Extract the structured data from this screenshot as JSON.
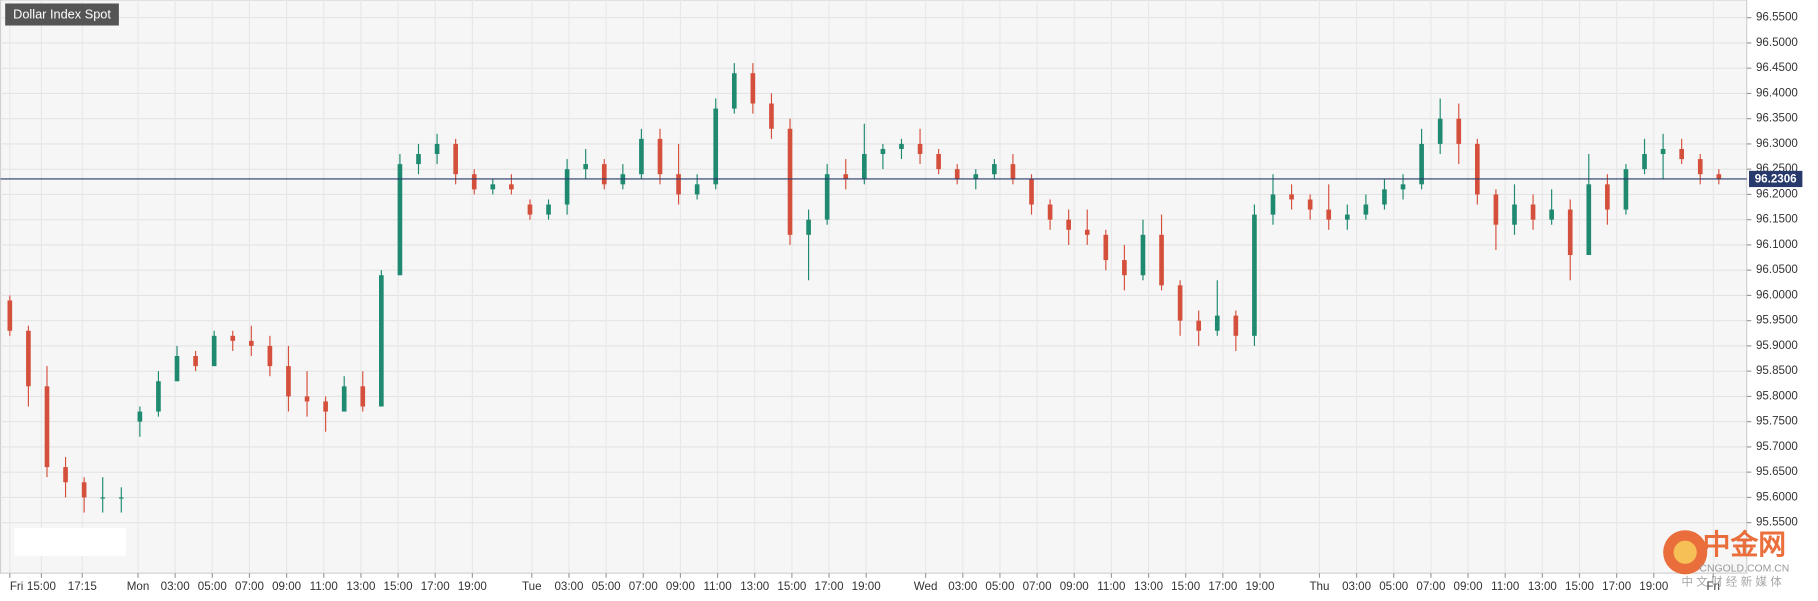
{
  "chart_data": {
    "type": "candlestick",
    "title": "Dollar Index Spot",
    "up_color": "#1f8a70",
    "down_color": "#d5503c",
    "grid": true,
    "last_price": 96.2306,
    "last_price_color": "#283a6b",
    "x": [
      0,
      1,
      2,
      3,
      4,
      5,
      6,
      7,
      8,
      9,
      10,
      11,
      12,
      13,
      14,
      15,
      16,
      17,
      18,
      19,
      20,
      21,
      22,
      23,
      24,
      25,
      26,
      27,
      28,
      29,
      30,
      31,
      32,
      33,
      34,
      35,
      36,
      37,
      38,
      39,
      40,
      41,
      42,
      43,
      44,
      45,
      46,
      47,
      48,
      49,
      50,
      51,
      52,
      53,
      54,
      55,
      56,
      57,
      58,
      59,
      60,
      61,
      62,
      63,
      64,
      65,
      66,
      67,
      68,
      69,
      70,
      71,
      72,
      73,
      74,
      75,
      76,
      77,
      78,
      79,
      80,
      81,
      82,
      83,
      84,
      85,
      86,
      87,
      88,
      89,
      90,
      91,
      92
    ],
    "open": [
      95.99,
      95.93,
      95.82,
      95.66,
      95.63,
      95.6,
      95.6,
      95.75,
      95.77,
      95.83,
      95.88,
      95.86,
      95.92,
      95.91,
      95.9,
      95.86,
      95.8,
      95.79,
      95.77,
      95.82,
      95.78,
      96.04,
      96.26,
      96.28,
      96.3,
      96.24,
      96.21,
      96.22,
      96.18,
      96.16,
      96.18,
      96.25,
      96.26,
      96.22,
      96.24,
      96.31,
      96.24,
      96.2,
      96.22,
      96.37,
      96.44,
      96.38,
      96.33,
      96.12,
      96.15,
      96.24,
      96.23,
      96.28,
      96.29,
      96.3,
      96.28,
      96.25,
      96.23,
      96.24,
      96.26,
      96.23,
      96.18,
      96.15,
      96.13,
      96.12,
      96.07,
      96.04,
      96.12,
      96.02,
      95.95,
      95.93,
      95.96,
      95.92,
      96.16,
      96.2,
      96.19,
      96.17,
      96.15,
      96.16,
      96.18,
      96.21,
      96.22,
      96.3,
      96.35,
      96.3,
      96.2,
      96.14,
      96.18,
      96.15,
      96.17,
      96.08,
      96.22,
      96.17,
      96.25,
      96.28,
      96.29,
      96.27,
      96.24
    ],
    "high": [
      96.0,
      95.94,
      95.86,
      95.68,
      95.64,
      95.64,
      95.62,
      95.78,
      95.85,
      95.9,
      95.89,
      95.93,
      95.93,
      95.94,
      95.92,
      95.9,
      95.85,
      95.8,
      95.84,
      95.85,
      96.05,
      96.28,
      96.3,
      96.32,
      96.31,
      96.25,
      96.23,
      96.24,
      96.19,
      96.19,
      96.27,
      96.29,
      96.27,
      96.26,
      96.33,
      96.33,
      96.3,
      96.24,
      96.39,
      96.46,
      96.46,
      96.4,
      96.35,
      96.17,
      96.26,
      96.27,
      96.34,
      96.3,
      96.31,
      96.33,
      96.29,
      96.26,
      96.25,
      96.27,
      96.28,
      96.24,
      96.19,
      96.17,
      96.17,
      96.13,
      96.1,
      96.15,
      96.16,
      96.03,
      95.97,
      96.03,
      95.97,
      96.18,
      96.24,
      96.22,
      96.2,
      96.22,
      96.18,
      96.2,
      96.23,
      96.24,
      96.33,
      96.39,
      96.38,
      96.31,
      96.21,
      96.22,
      96.2,
      96.21,
      96.19,
      96.28,
      96.24,
      96.26,
      96.31,
      96.32,
      96.31,
      96.28,
      96.25
    ],
    "low": [
      95.92,
      95.78,
      95.64,
      95.6,
      95.57,
      95.57,
      95.57,
      95.72,
      95.76,
      95.83,
      95.85,
      95.86,
      95.89,
      95.88,
      95.84,
      95.77,
      95.76,
      95.73,
      95.77,
      95.77,
      95.78,
      96.04,
      96.24,
      96.26,
      96.22,
      96.2,
      96.2,
      96.2,
      96.15,
      96.15,
      96.16,
      96.23,
      96.21,
      96.21,
      96.23,
      96.22,
      96.18,
      96.19,
      96.21,
      96.36,
      96.36,
      96.31,
      96.1,
      96.03,
      96.14,
      96.21,
      96.22,
      96.25,
      96.27,
      96.26,
      96.24,
      96.22,
      96.21,
      96.23,
      96.22,
      96.16,
      96.13,
      96.1,
      96.1,
      96.05,
      96.01,
      96.03,
      96.01,
      95.92,
      95.9,
      95.92,
      95.89,
      95.9,
      96.14,
      96.17,
      96.15,
      96.13,
      96.13,
      96.15,
      96.17,
      96.19,
      96.21,
      96.28,
      96.26,
      96.18,
      96.09,
      96.12,
      96.13,
      96.14,
      96.03,
      96.08,
      96.14,
      96.16,
      96.24,
      96.23,
      96.26,
      96.22,
      96.22
    ],
    "close": [
      95.93,
      95.82,
      95.66,
      95.63,
      95.6,
      95.6,
      95.6,
      95.77,
      95.83,
      95.88,
      95.86,
      95.92,
      95.91,
      95.9,
      95.86,
      95.8,
      95.79,
      95.77,
      95.82,
      95.78,
      96.04,
      96.26,
      96.28,
      96.3,
      96.24,
      96.21,
      96.22,
      96.21,
      96.16,
      96.18,
      96.25,
      96.26,
      96.22,
      96.24,
      96.31,
      96.24,
      96.2,
      96.22,
      96.37,
      96.44,
      96.38,
      96.33,
      96.12,
      96.15,
      96.24,
      96.23,
      96.28,
      96.29,
      96.3,
      96.28,
      96.25,
      96.23,
      96.24,
      96.26,
      96.23,
      96.18,
      96.15,
      96.13,
      96.12,
      96.07,
      96.04,
      96.12,
      96.02,
      95.95,
      95.93,
      95.96,
      95.92,
      96.16,
      96.2,
      96.19,
      96.17,
      96.15,
      96.16,
      96.18,
      96.21,
      96.22,
      96.3,
      96.35,
      96.3,
      96.2,
      96.14,
      96.18,
      96.15,
      96.17,
      96.08,
      96.22,
      96.17,
      96.25,
      96.28,
      96.29,
      96.27,
      96.24,
      96.23
    ],
    "xlim": [
      -0.5,
      93.5
    ],
    "xticks": [
      {
        "value": 0,
        "label": "Fri"
      },
      {
        "value": 1.7,
        "label": "15:00"
      },
      {
        "value": 3.9,
        "label": "17:15"
      },
      {
        "value": 6.9,
        "label": "Mon"
      },
      {
        "value": 8.9,
        "label": "03:00"
      },
      {
        "value": 10.9,
        "label": "05:00"
      },
      {
        "value": 12.9,
        "label": "07:00"
      },
      {
        "value": 14.9,
        "label": "09:00"
      },
      {
        "value": 16.9,
        "label": "11:00"
      },
      {
        "value": 18.9,
        "label": "13:00"
      },
      {
        "value": 20.9,
        "label": "15:00"
      },
      {
        "value": 22.9,
        "label": "17:00"
      },
      {
        "value": 24.9,
        "label": "19:00"
      },
      {
        "value": 28.1,
        "label": "Tue"
      },
      {
        "value": 30.1,
        "label": "03:00"
      },
      {
        "value": 32.1,
        "label": "05:00"
      },
      {
        "value": 34.1,
        "label": "07:00"
      },
      {
        "value": 36.1,
        "label": "09:00"
      },
      {
        "value": 38.1,
        "label": "11:00"
      },
      {
        "value": 40.1,
        "label": "13:00"
      },
      {
        "value": 42.1,
        "label": "15:00"
      },
      {
        "value": 44.1,
        "label": "17:00"
      },
      {
        "value": 46.1,
        "label": "19:00"
      },
      {
        "value": 49.3,
        "label": "Wed"
      },
      {
        "value": 51.3,
        "label": "03:00"
      },
      {
        "value": 53.3,
        "label": "05:00"
      },
      {
        "value": 55.3,
        "label": "07:00"
      },
      {
        "value": 57.3,
        "label": "09:00"
      },
      {
        "value": 59.3,
        "label": "11:00"
      },
      {
        "value": 61.3,
        "label": "13:00"
      },
      {
        "value": 63.3,
        "label": "15:00"
      },
      {
        "value": 65.3,
        "label": "17:00"
      },
      {
        "value": 67.3,
        "label": "19:00"
      },
      {
        "value": 70.5,
        "label": "Thu"
      },
      {
        "value": 72.5,
        "label": "03:00"
      },
      {
        "value": 74.5,
        "label": "05:00"
      },
      {
        "value": 76.5,
        "label": "07:00"
      },
      {
        "value": 78.5,
        "label": "09:00"
      },
      {
        "value": 80.5,
        "label": "11:00"
      },
      {
        "value": 82.5,
        "label": "13:00"
      },
      {
        "value": 84.5,
        "label": "15:00"
      },
      {
        "value": 86.5,
        "label": "17:00"
      },
      {
        "value": 88.5,
        "label": "19:00"
      },
      {
        "value": 91.7,
        "label": "Fri"
      }
    ],
    "ylim": [
      95.45,
      96.585
    ],
    "yticks": [
      {
        "value": 96.55,
        "label": "96.5500"
      },
      {
        "value": 96.5,
        "label": "96.5000"
      },
      {
        "value": 96.45,
        "label": "96.4500"
      },
      {
        "value": 96.4,
        "label": "96.4000"
      },
      {
        "value": 96.35,
        "label": "96.3500"
      },
      {
        "value": 96.3,
        "label": "96.3000"
      },
      {
        "value": 96.25,
        "label": "96.2500"
      },
      {
        "value": 96.2,
        "label": "96.2000"
      },
      {
        "value": 96.15,
        "label": "96.1500"
      },
      {
        "value": 96.1,
        "label": "96.1000"
      },
      {
        "value": 96.05,
        "label": "96.0500"
      },
      {
        "value": 96.0,
        "label": "96.0000"
      },
      {
        "value": 95.95,
        "label": "95.9500"
      },
      {
        "value": 95.9,
        "label": "95.9000"
      },
      {
        "value": 95.85,
        "label": "95.8500"
      },
      {
        "value": 95.8,
        "label": "95.8000"
      },
      {
        "value": 95.75,
        "label": "95.7500"
      },
      {
        "value": 95.7,
        "label": "95.7000"
      },
      {
        "value": 95.65,
        "label": "95.6500"
      },
      {
        "value": 95.6,
        "label": "95.6000"
      },
      {
        "value": 95.55,
        "label": "95.5500"
      }
    ]
  },
  "watermark": {
    "logo": "中金网",
    "domain": "CNGOLD.COM.CN",
    "slogan": "中 文 财 经 新 媒 体"
  }
}
